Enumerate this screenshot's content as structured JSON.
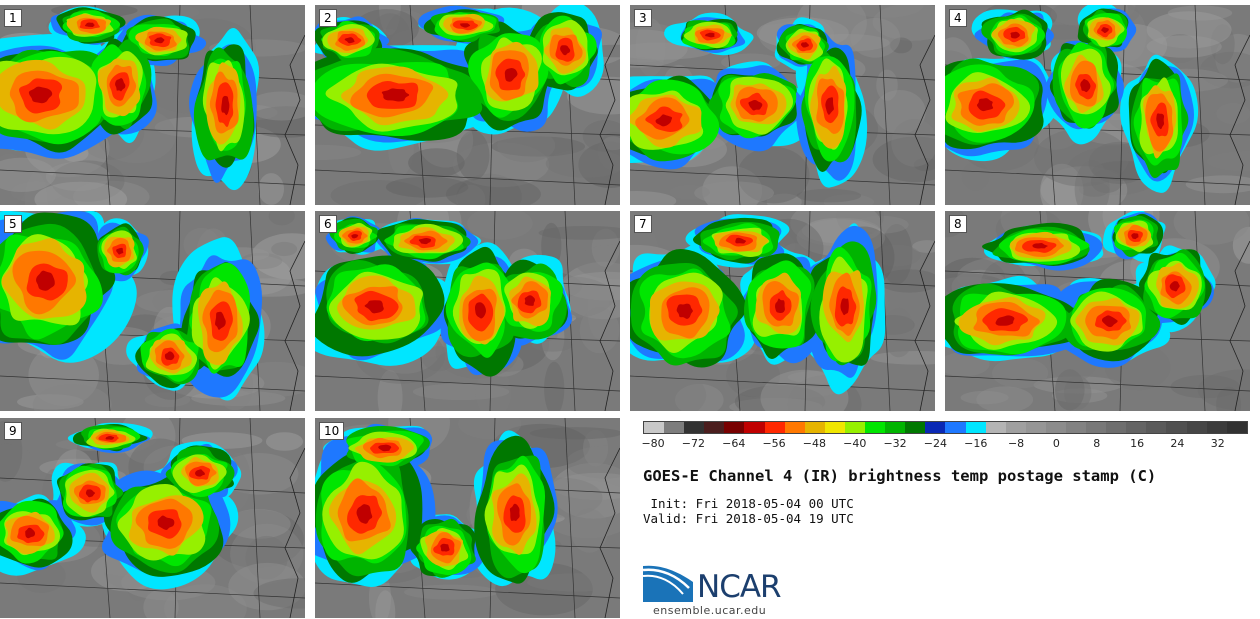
{
  "panels": [
    {
      "label": "1"
    },
    {
      "label": "2"
    },
    {
      "label": "3"
    },
    {
      "label": "4"
    },
    {
      "label": "5"
    },
    {
      "label": "6"
    },
    {
      "label": "7"
    },
    {
      "label": "8"
    },
    {
      "label": "9"
    },
    {
      "label": "10"
    }
  ],
  "colorbar": {
    "colors": [
      "#c8c8c8",
      "#7d7d7d",
      "#323232",
      "#4b1e1e",
      "#780000",
      "#c00000",
      "#ff2800",
      "#ff7800",
      "#e6b400",
      "#f0e600",
      "#96f000",
      "#00e600",
      "#00b400",
      "#007800",
      "#0a28b4",
      "#1e78ff",
      "#00e6ff",
      "#b4b4b4",
      "#a0a0a0",
      "#969696",
      "#8c8c8c",
      "#828282",
      "#787878",
      "#6e6e6e",
      "#646464",
      "#5a5a5a",
      "#505050",
      "#464646",
      "#3c3c3c",
      "#323232"
    ],
    "tick_labels": [
      "-80",
      "-72",
      "-64",
      "-56",
      "-48",
      "-40",
      "-32",
      "-24",
      "-16",
      "-8",
      "0",
      "8",
      "16",
      "24",
      "32"
    ]
  },
  "title": "GOES-E Channel 4 (IR) brightness temp postage stamp (C)",
  "init": " Init: Fri 2018-05-04 00 UTC",
  "valid": "Valid: Fri 2018-05-04 19 UTC",
  "logo": {
    "text": "NCAR",
    "url": "ensemble.ucar.edu"
  }
}
